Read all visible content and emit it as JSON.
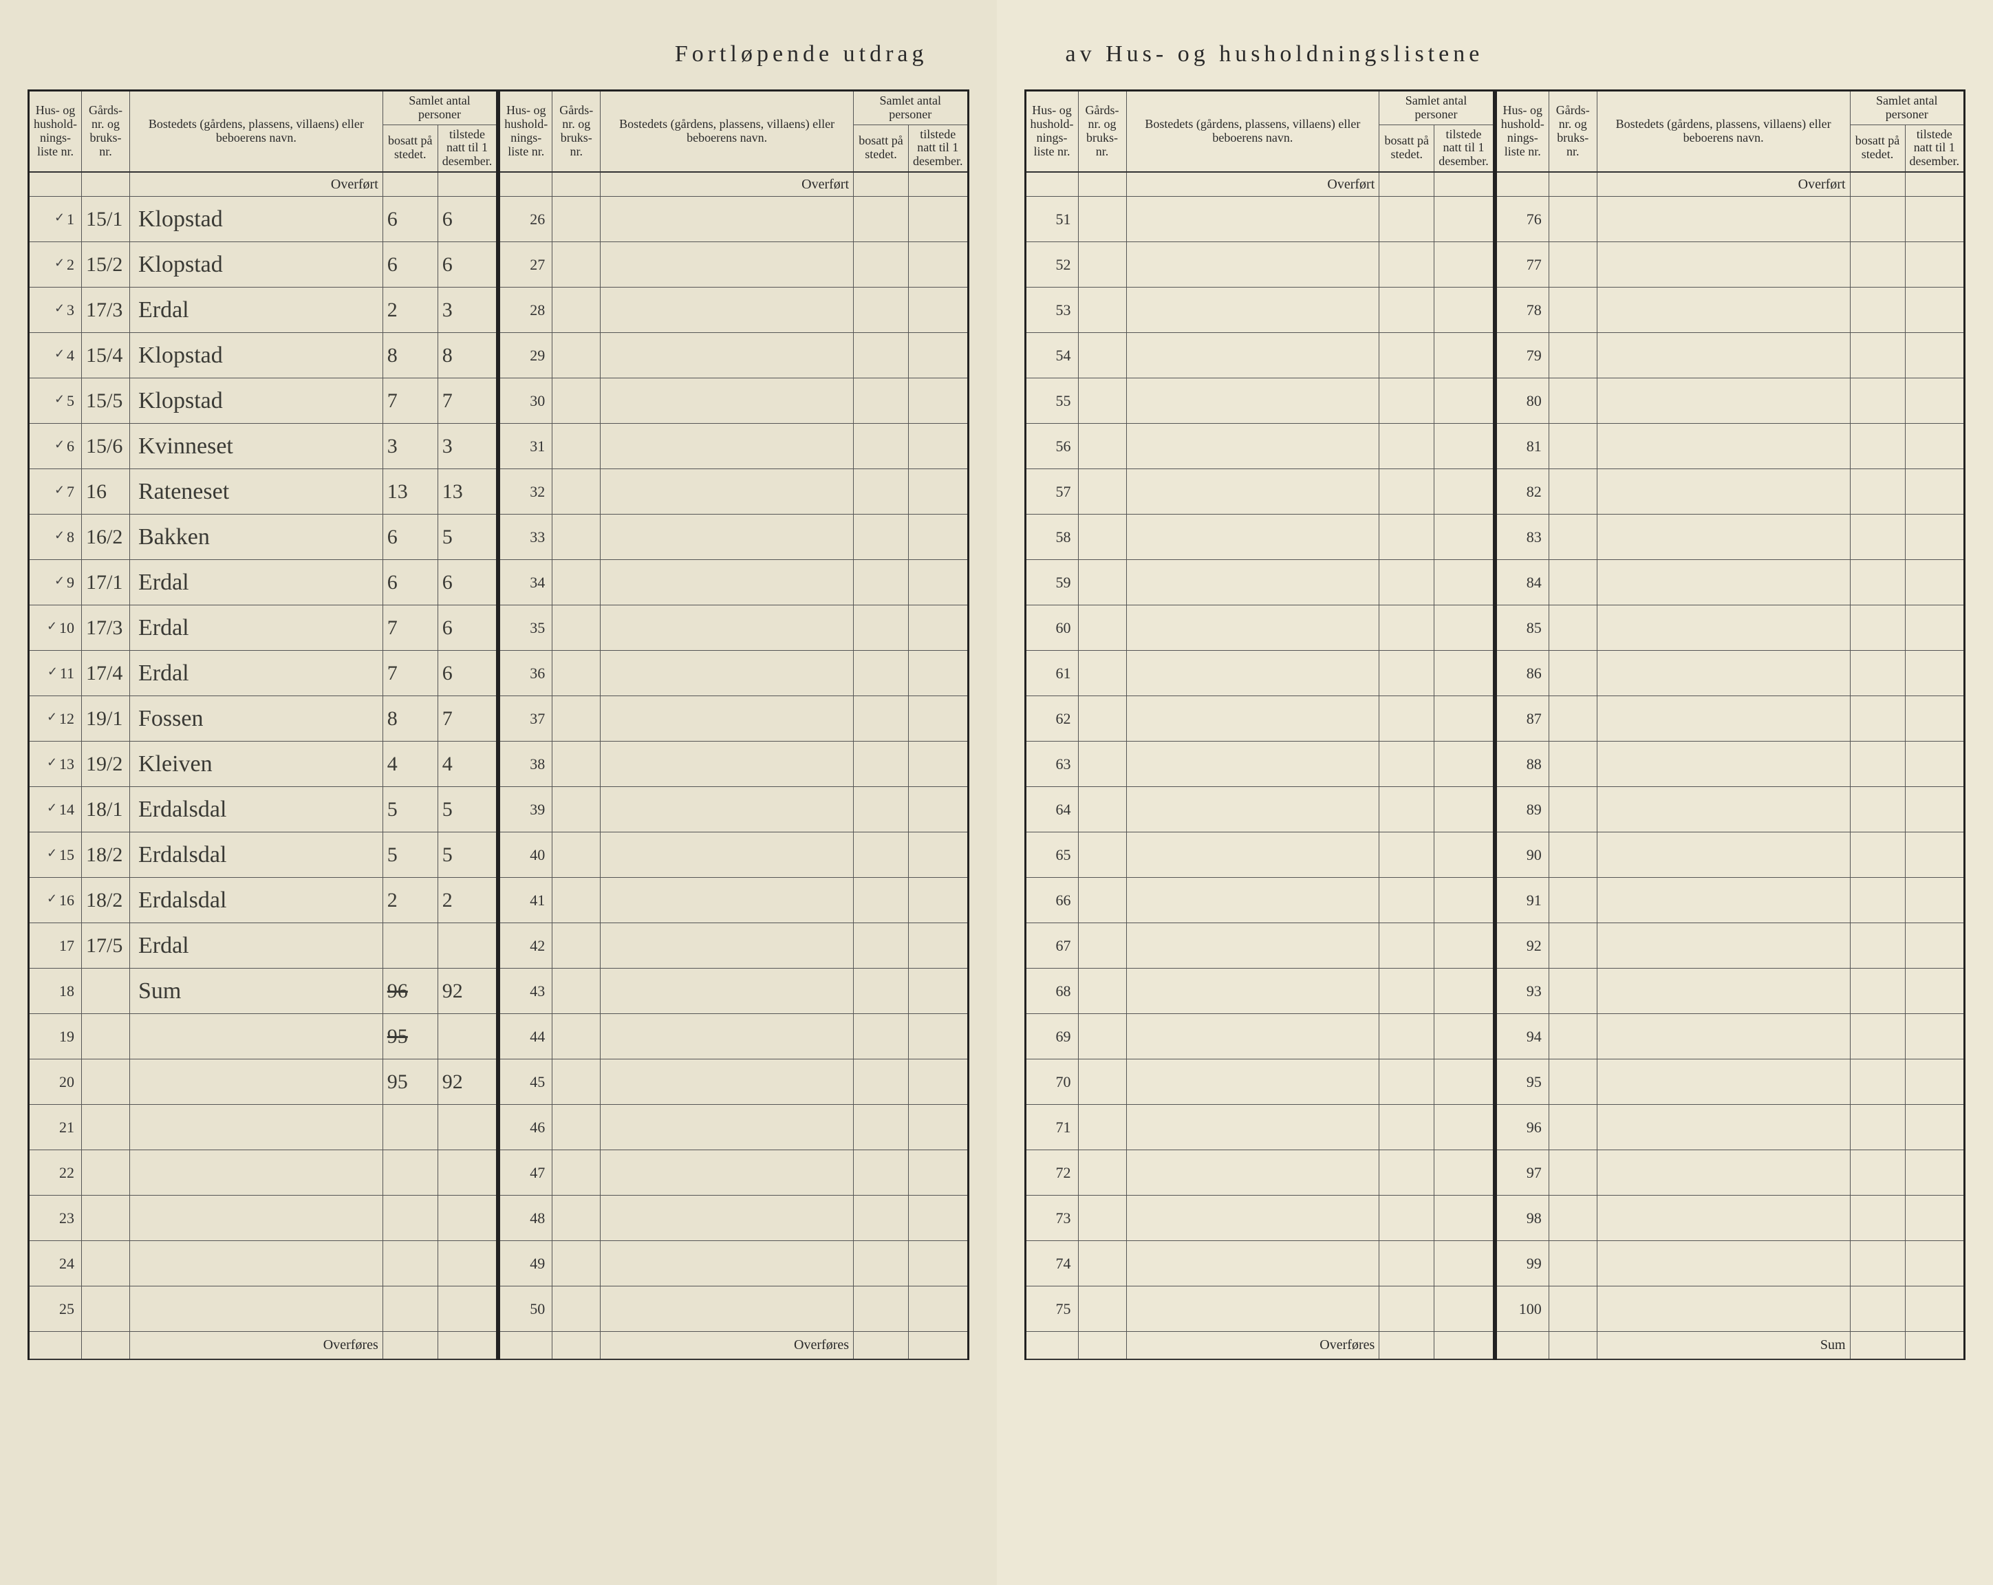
{
  "title_left": "Fortløpende utdrag",
  "title_right": "av Hus- og husholdningslistene",
  "headers": {
    "liste": "Hus- og hushold-nings-liste nr.",
    "gards": "Gårds-nr. og bruks-nr.",
    "bosted": "Bostedets (gårdens, plassens, villaens) eller beboerens navn.",
    "antal": "Samlet antal personer",
    "bosatt": "bosatt på stedet.",
    "tilstede": "tilstede natt til 1 desember."
  },
  "overfort": "Overført",
  "overfores": "Overføres",
  "sum": "Sum",
  "entries": [
    {
      "n": "1",
      "g": "15/1",
      "name": "Klopstad",
      "b": "6",
      "t": "6",
      "c": true
    },
    {
      "n": "2",
      "g": "15/2",
      "name": "Klopstad",
      "b": "6",
      "t": "6",
      "c": true
    },
    {
      "n": "3",
      "g": "17/3",
      "name": "Erdal",
      "b": "2",
      "t": "3",
      "c": true
    },
    {
      "n": "4",
      "g": "15/4",
      "name": "Klopstad",
      "b": "8",
      "t": "8",
      "c": true
    },
    {
      "n": "5",
      "g": "15/5",
      "name": "Klopstad",
      "b": "7",
      "t": "7",
      "c": true
    },
    {
      "n": "6",
      "g": "15/6",
      "name": "Kvinneset",
      "b": "3",
      "t": "3",
      "c": true
    },
    {
      "n": "7",
      "g": "16",
      "name": "Rateneset",
      "b": "13",
      "t": "13",
      "c": true
    },
    {
      "n": "8",
      "g": "16/2",
      "name": "Bakken",
      "b": "6",
      "t": "5",
      "c": true
    },
    {
      "n": "9",
      "g": "17/1",
      "name": "Erdal",
      "b": "6",
      "t": "6",
      "c": true
    },
    {
      "n": "10",
      "g": "17/3",
      "name": "Erdal",
      "b": "7",
      "t": "6",
      "c": true
    },
    {
      "n": "11",
      "g": "17/4",
      "name": "Erdal",
      "b": "7",
      "t": "6",
      "c": true
    },
    {
      "n": "12",
      "g": "19/1",
      "name": "Fossen",
      "b": "8",
      "t": "7",
      "c": true
    },
    {
      "n": "13",
      "g": "19/2",
      "name": "Kleiven",
      "b": "4",
      "t": "4",
      "c": true
    },
    {
      "n": "14",
      "g": "18/1",
      "name": "Erdalsdal",
      "b": "5",
      "t": "5",
      "c": true
    },
    {
      "n": "15",
      "g": "18/2",
      "name": "Erdalsdal",
      "b": "5",
      "t": "5",
      "c": true
    },
    {
      "n": "16",
      "g": "18/2",
      "name": "Erdalsdal",
      "b": "2",
      "t": "2",
      "c": true
    },
    {
      "n": "17",
      "g": "17/5",
      "name": "Erdal",
      "b": "",
      "t": "",
      "c": false
    },
    {
      "n": "18",
      "g": "",
      "name": "Sum",
      "b": "96",
      "t": "92",
      "c": false,
      "strike_b": true
    },
    {
      "n": "19",
      "g": "",
      "name": "",
      "b": "95",
      "t": "",
      "c": false,
      "strike_b": true
    },
    {
      "n": "20",
      "g": "",
      "name": "",
      "b": "95",
      "t": "92",
      "c": false
    },
    {
      "n": "21",
      "g": "",
      "name": "",
      "b": "",
      "t": "",
      "c": false
    },
    {
      "n": "22",
      "g": "",
      "name": "",
      "b": "",
      "t": "",
      "c": false
    },
    {
      "n": "23",
      "g": "",
      "name": "",
      "b": "",
      "t": "",
      "c": false
    },
    {
      "n": "24",
      "g": "",
      "name": "",
      "b": "",
      "t": "",
      "c": false
    },
    {
      "n": "25",
      "g": "",
      "name": "",
      "b": "",
      "t": "",
      "c": false
    }
  ],
  "panelB_start": 26,
  "panelC_start": 51,
  "panelD_start": 76,
  "rows_per_panel": 25
}
